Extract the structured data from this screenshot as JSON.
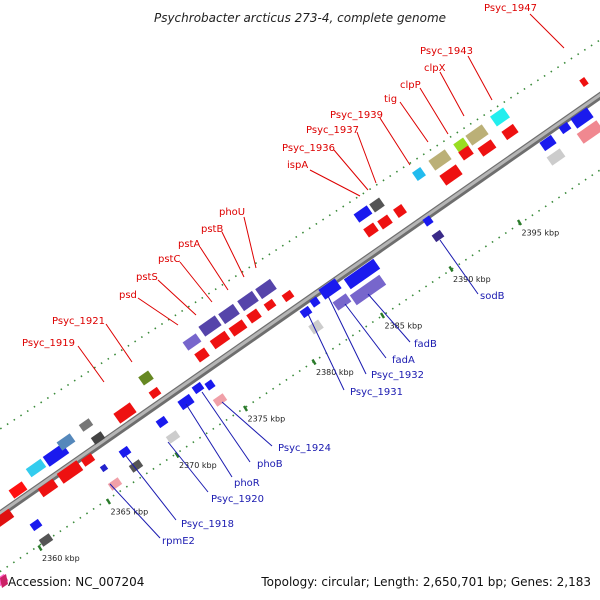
{
  "title": "Psychrobacter arcticus 273-4, complete genome",
  "footer": {
    "accession": "Accession: NC_007204",
    "summary": "Topology: circular; Length: 2,650,701 bp; Genes: 2,183"
  },
  "colors": {
    "forward_label": "#dd0000",
    "reverse_label": "#1a1ab0",
    "backbone": "#8c8c8c",
    "tick": "#2a7a2a"
  },
  "ticks": [
    {
      "label": "2360 kbp",
      "kbp": 2360
    },
    {
      "label": "2365 kbp",
      "kbp": 2365
    },
    {
      "label": "2370 kbp",
      "kbp": 2370
    },
    {
      "label": "2375 kbp",
      "kbp": 2375
    },
    {
      "label": "2380 kbp",
      "kbp": 2380
    },
    {
      "label": "2385 kbp",
      "kbp": 2385
    },
    {
      "label": "2390 kbp",
      "kbp": 2390
    },
    {
      "label": "2395 kbp",
      "kbp": 2395
    }
  ],
  "forward_labels": [
    "Psyc_1919",
    "Psyc_1921",
    "psd",
    "pstS",
    "pstC",
    "pstA",
    "pstB",
    "phoU",
    "ispA",
    "Psyc_1936",
    "Psyc_1937",
    "Psyc_1939",
    "tig",
    "clpP",
    "clpX",
    "Psyc_1943",
    "Psyc_1947"
  ],
  "reverse_labels": [
    "rpmE2",
    "Psyc_1918",
    "Psyc_1920",
    "phoR",
    "phoB",
    "Psyc_1924",
    "Psyc_1931",
    "Psyc_1932",
    "fadA",
    "fadB",
    "sodB"
  ]
}
